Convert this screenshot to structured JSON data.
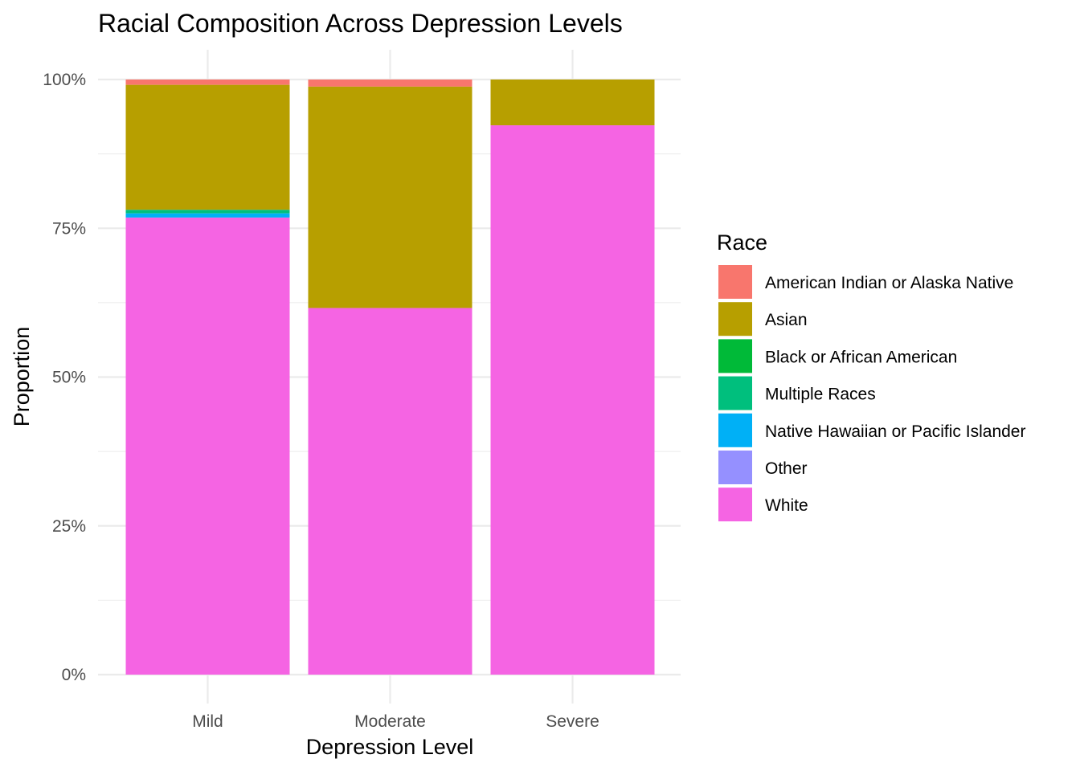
{
  "chart_data": {
    "type": "bar",
    "stacked": "proportion",
    "title": "Racial Composition Across Depression Levels",
    "xlabel": "Depression Level",
    "ylabel": "Proportion",
    "ylim": [
      0,
      1
    ],
    "yticks": [
      0,
      0.25,
      0.5,
      0.75,
      1.0
    ],
    "ytick_labels": [
      "0%",
      "25%",
      "50%",
      "75%",
      "100%"
    ],
    "grid": true,
    "legend": {
      "title": "Race",
      "placement": "right"
    },
    "categories": [
      "Mild",
      "Moderate",
      "Severe"
    ],
    "series": [
      {
        "name": "American Indian or Alaska Native",
        "color": "#F8766D",
        "values": [
          0.009,
          0.012,
          0.0
        ]
      },
      {
        "name": "Asian",
        "color": "#B79F00",
        "values": [
          0.21,
          0.372,
          0.077
        ]
      },
      {
        "name": "Black or African American",
        "color": "#00BA38",
        "values": [
          0.0,
          0.0,
          0.0
        ]
      },
      {
        "name": "Multiple Races",
        "color": "#00BF7D",
        "values": [
          0.006,
          0.0,
          0.0
        ]
      },
      {
        "name": "Native Hawaiian or Pacific Islander",
        "color": "#00B0F6",
        "values": [
          0.007,
          0.0,
          0.0
        ]
      },
      {
        "name": "Other",
        "color": "#9590FF",
        "values": [
          0.0,
          0.0,
          0.0
        ]
      },
      {
        "name": "White",
        "color": "#F564E3",
        "values": [
          0.768,
          0.616,
          0.923
        ]
      }
    ]
  }
}
